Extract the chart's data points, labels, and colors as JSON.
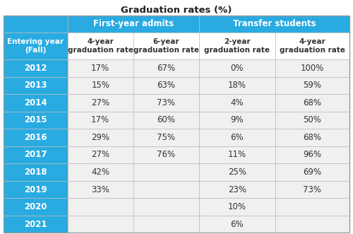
{
  "title": "Graduation rates (%)",
  "col_header_row1_texts": [
    "",
    "First-year admits",
    "Transfer students"
  ],
  "col_header_row2": [
    "Entering year\n(Fall)",
    "4-year\ngraduation rate",
    "6-year\ngraduation rate",
    "2-year\ngraduation rate",
    "4-year\ngraduation rate"
  ],
  "rows": [
    [
      "2012",
      "17%",
      "67%",
      "0%",
      "100%"
    ],
    [
      "2013",
      "15%",
      "63%",
      "18%",
      "59%"
    ],
    [
      "2014",
      "27%",
      "73%",
      "4%",
      "68%"
    ],
    [
      "2015",
      "17%",
      "60%",
      "9%",
      "50%"
    ],
    [
      "2016",
      "29%",
      "75%",
      "6%",
      "68%"
    ],
    [
      "2017",
      "27%",
      "76%",
      "11%",
      "96%"
    ],
    [
      "2018",
      "42%",
      "",
      "25%",
      "69%"
    ],
    [
      "2019",
      "33%",
      "",
      "23%",
      "73%"
    ],
    [
      "2020",
      "",
      "",
      "10%",
      ""
    ],
    [
      "2021",
      "",
      "",
      "6%",
      ""
    ]
  ],
  "blue": "#29ABE2",
  "white": "#FFFFFF",
  "light_gray": "#F0F0F0",
  "border": "#BBBBBB",
  "title_color": "#222222",
  "white_text": "#FFFFFF",
  "dark_text": "#333333",
  "figsize": [
    5.0,
    3.31
  ],
  "dpi": 100,
  "title_fontsize": 9.5,
  "header1_fontsize": 8.5,
  "header2_fontsize": 7.5,
  "data_fontsize": 8.5,
  "col0_fontsize": 8.5
}
